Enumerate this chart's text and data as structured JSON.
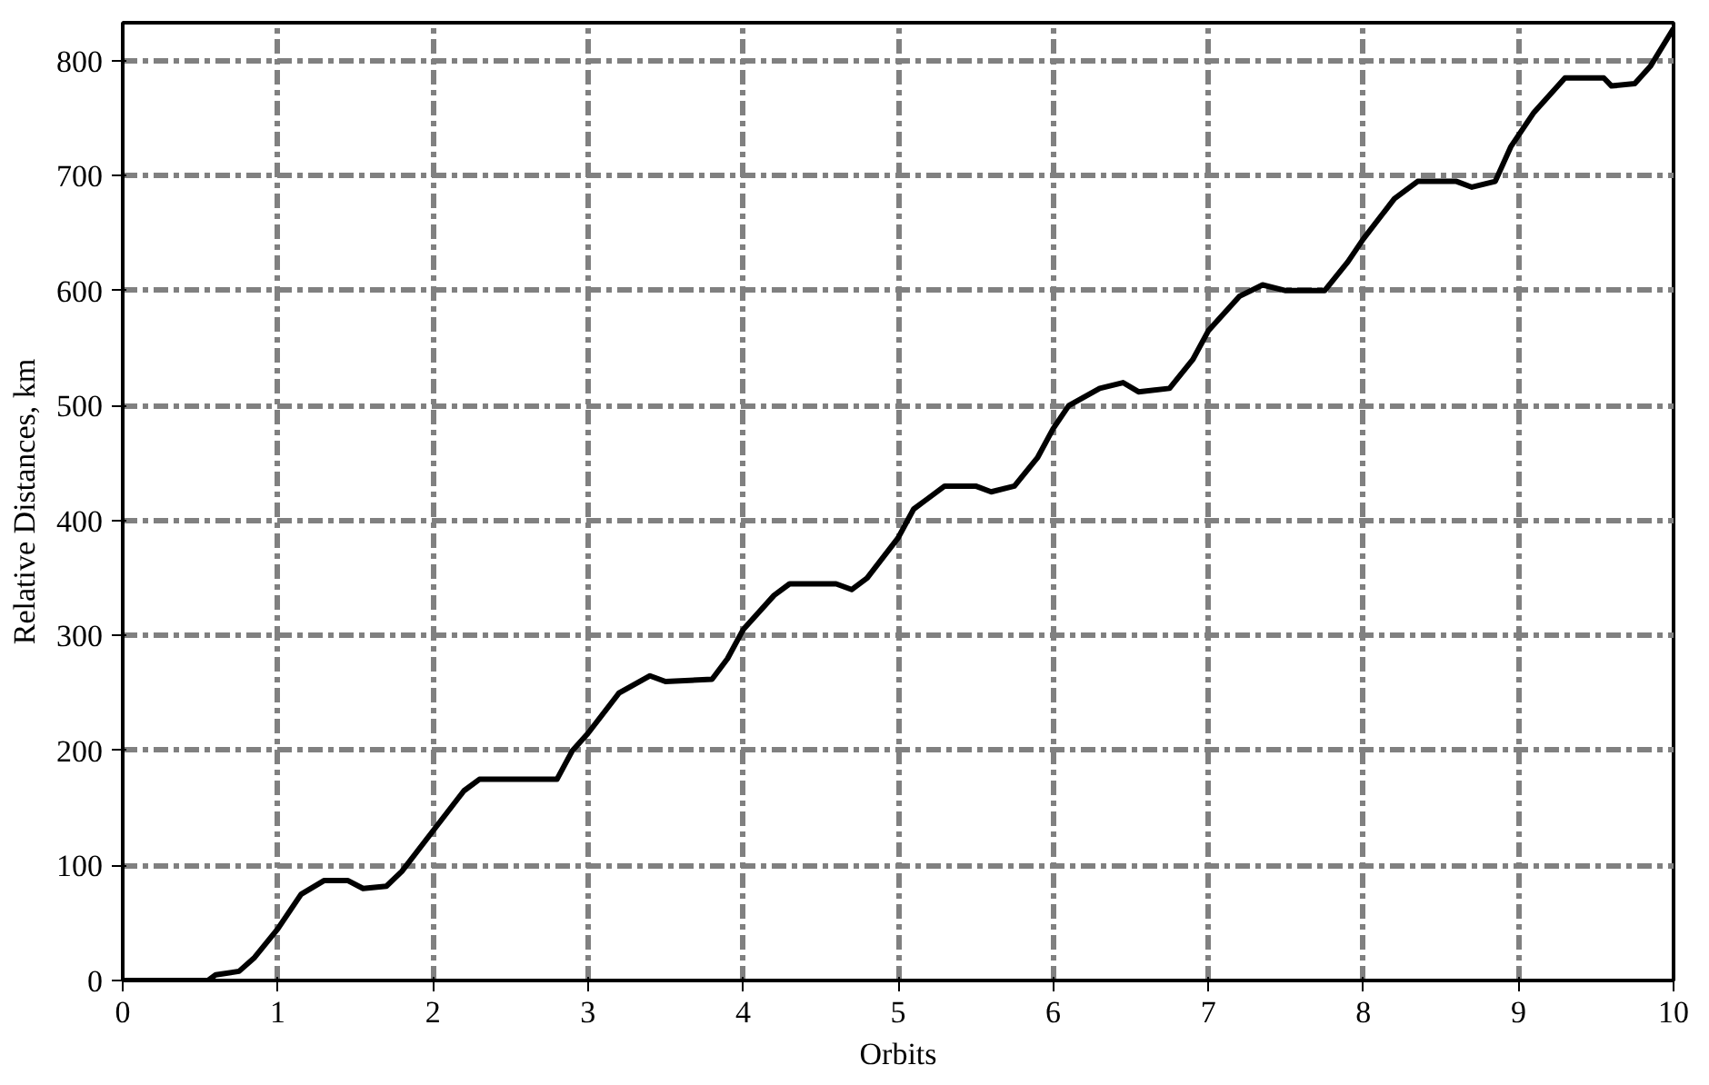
{
  "chart_data": {
    "type": "line",
    "xlabel": "Orbits",
    "ylabel": "Relative Distances, km",
    "xlim": [
      0,
      10
    ],
    "ylim": [
      0,
      833
    ],
    "xticks": [
      0,
      1,
      2,
      3,
      4,
      5,
      6,
      7,
      8,
      9,
      10
    ],
    "yticks": [
      0,
      100,
      200,
      300,
      400,
      500,
      600,
      700,
      800
    ],
    "grid": true,
    "marker": "none",
    "line_style": "solid",
    "series": [
      {
        "color": "#000000",
        "x": [
          0,
          0.55,
          0.6,
          0.75,
          0.85,
          1.0,
          1.15,
          1.3,
          1.45,
          1.55,
          1.7,
          1.8,
          2.0,
          2.2,
          2.3,
          2.8,
          2.9,
          3.0,
          3.2,
          3.4,
          3.5,
          3.8,
          3.9,
          4.0,
          4.2,
          4.3,
          4.6,
          4.7,
          4.8,
          5.0,
          5.1,
          5.3,
          5.5,
          5.6,
          5.75,
          5.9,
          6.0,
          6.1,
          6.3,
          6.45,
          6.55,
          6.75,
          6.9,
          7.0,
          7.2,
          7.35,
          7.5,
          7.75,
          7.9,
          8.0,
          8.2,
          8.35,
          8.6,
          8.7,
          8.85,
          8.95,
          9.1,
          9.3,
          9.55,
          9.6,
          9.75,
          9.85,
          10.0
        ],
        "values": [
          0,
          0,
          5,
          8,
          20,
          45,
          75,
          87,
          87,
          80,
          82,
          95,
          130,
          165,
          175,
          175,
          200,
          215,
          250,
          265,
          260,
          262,
          280,
          305,
          335,
          345,
          345,
          340,
          350,
          385,
          410,
          430,
          430,
          425,
          430,
          455,
          480,
          500,
          515,
          520,
          512,
          515,
          540,
          565,
          595,
          605,
          600,
          600,
          625,
          645,
          680,
          695,
          695,
          690,
          695,
          725,
          755,
          785,
          785,
          778,
          780,
          795,
          828
        ]
      }
    ]
  }
}
